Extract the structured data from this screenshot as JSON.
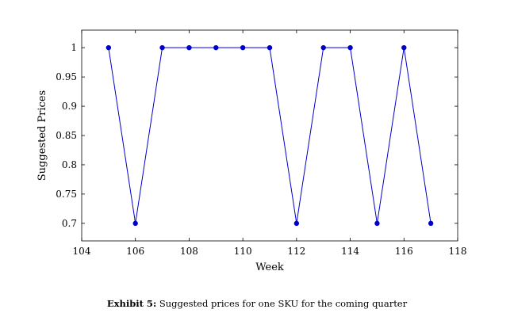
{
  "chart_data": {
    "type": "line",
    "title": "",
    "xlabel": "Week",
    "ylabel": "Suggested Prices",
    "xlim": [
      104,
      118
    ],
    "ylim": [
      0.67,
      1.03
    ],
    "xticks": [
      104,
      106,
      108,
      110,
      112,
      114,
      116,
      118
    ],
    "yticks": [
      0.7,
      0.75,
      0.8,
      0.85,
      0.9,
      0.95,
      1
    ],
    "grid": false,
    "series": [
      {
        "color": "#0000cc",
        "x": [
          105,
          106,
          107,
          108,
          109,
          110,
          111,
          112,
          113,
          114,
          115,
          116,
          117
        ],
        "y": [
          1,
          0.7,
          1,
          1,
          1,
          1,
          1,
          0.7,
          1,
          1,
          0.7,
          1,
          0.7
        ]
      }
    ]
  },
  "caption": {
    "label": "Exhibit 5:",
    "text": "Suggested prices for one SKU for the coming quarter"
  }
}
